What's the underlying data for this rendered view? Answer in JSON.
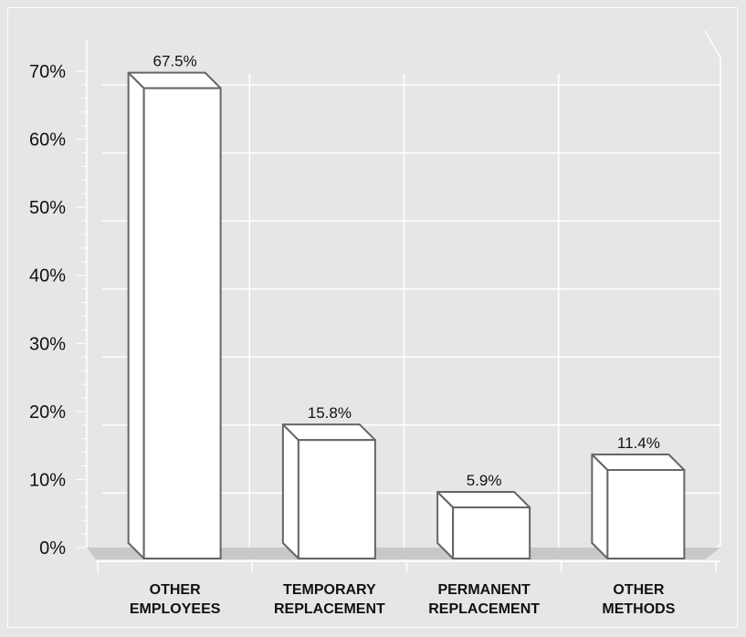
{
  "chart_data": {
    "type": "bar",
    "categories": [
      [
        "OTHER",
        "EMPLOYEES"
      ],
      [
        "TEMPORARY",
        "REPLACEMENT"
      ],
      [
        "PERMANENT",
        "REPLACEMENT"
      ],
      [
        "OTHER",
        "METHODS"
      ]
    ],
    "values": [
      67.5,
      15.8,
      5.9,
      11.4
    ],
    "data_labels": [
      "67.5%",
      "15.8%",
      "5.9%",
      "11.4%"
    ],
    "y_ticks": [
      0,
      10,
      20,
      30,
      40,
      50,
      60,
      70
    ],
    "y_tick_labels": [
      "0%",
      "10%",
      "20%",
      "30%",
      "40%",
      "50%",
      "60%",
      "70%"
    ],
    "ylim": [
      0,
      70
    ],
    "title": "",
    "xlabel": "",
    "ylabel": "",
    "grid": true,
    "style": "3d",
    "colors": {
      "background": "#e6e6e6",
      "grid": "#ffffff",
      "floor": "#c8c8c8",
      "bar_face": "#ffffff",
      "bar_edge": "#666666"
    }
  }
}
